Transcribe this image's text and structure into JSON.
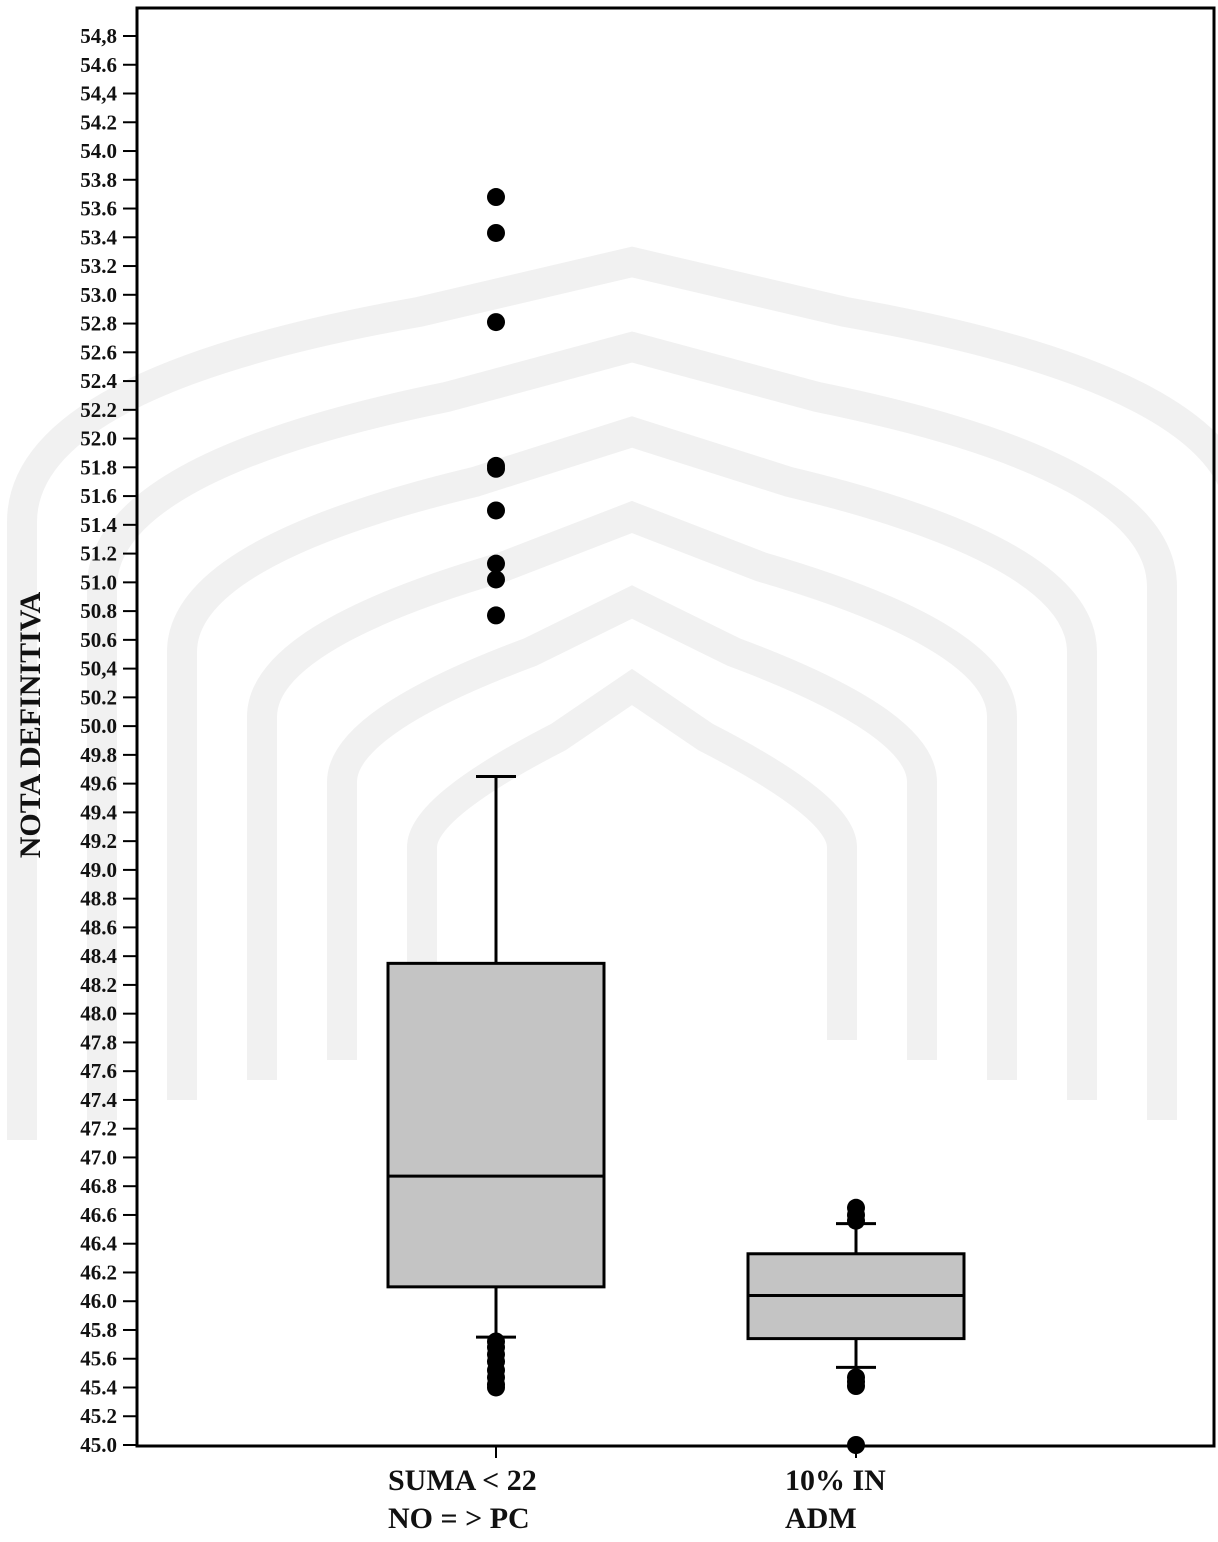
{
  "chart_data": {
    "type": "box",
    "ylabel": "NOTA DEFINITIVA",
    "ylim": [
      45.0,
      54.8
    ],
    "ytick_step": 0.2,
    "ytick_labels": [
      "45.0",
      "45.2",
      "45.4",
      "45.6",
      "45.8",
      "46.0",
      "46.2",
      "46.4",
      "46.6",
      "46.8",
      "47.0",
      "47.2",
      "47.4",
      "47.6",
      "47.8",
      "48.0",
      "48.2",
      "48.4",
      "48.6",
      "48.8",
      "49.0",
      "49.2",
      "49.4",
      "49.6",
      "49.8",
      "50.0",
      "50.2",
      "50,4",
      "50.6",
      "50.8",
      "51.0",
      "51.2",
      "51.4",
      "51.6",
      "51.8",
      "52.0",
      "52.2",
      "52.4",
      "52.6",
      "52.8",
      "53.0",
      "53.2",
      "53.4",
      "53.6",
      "53.8",
      "54.0",
      "54.2",
      "54,4",
      "54.6",
      "54,8"
    ],
    "grid": false,
    "box_color": "#c4c4c4",
    "boxes": [
      {
        "category_lines": [
          "SUMA < 22",
          "NO = > PC"
        ],
        "whisker_low": 45.75,
        "q1": 46.1,
        "median": 46.87,
        "q3": 48.35,
        "whisker_high": 49.65,
        "outliers": [
          53.68,
          53.43,
          52.81,
          51.81,
          51.79,
          51.5,
          51.13,
          51.02,
          50.77,
          45.72,
          45.68,
          45.63,
          45.58,
          45.52,
          45.47,
          45.42,
          45.4
        ]
      },
      {
        "category_lines": [
          "10% IN",
          "ADM"
        ],
        "whisker_low": 45.54,
        "q1": 45.74,
        "median": 46.04,
        "q3": 46.33,
        "whisker_high": 46.54,
        "outliers": [
          46.65,
          46.6,
          46.56,
          45.47,
          45.44,
          45.41,
          45.0
        ]
      }
    ]
  }
}
